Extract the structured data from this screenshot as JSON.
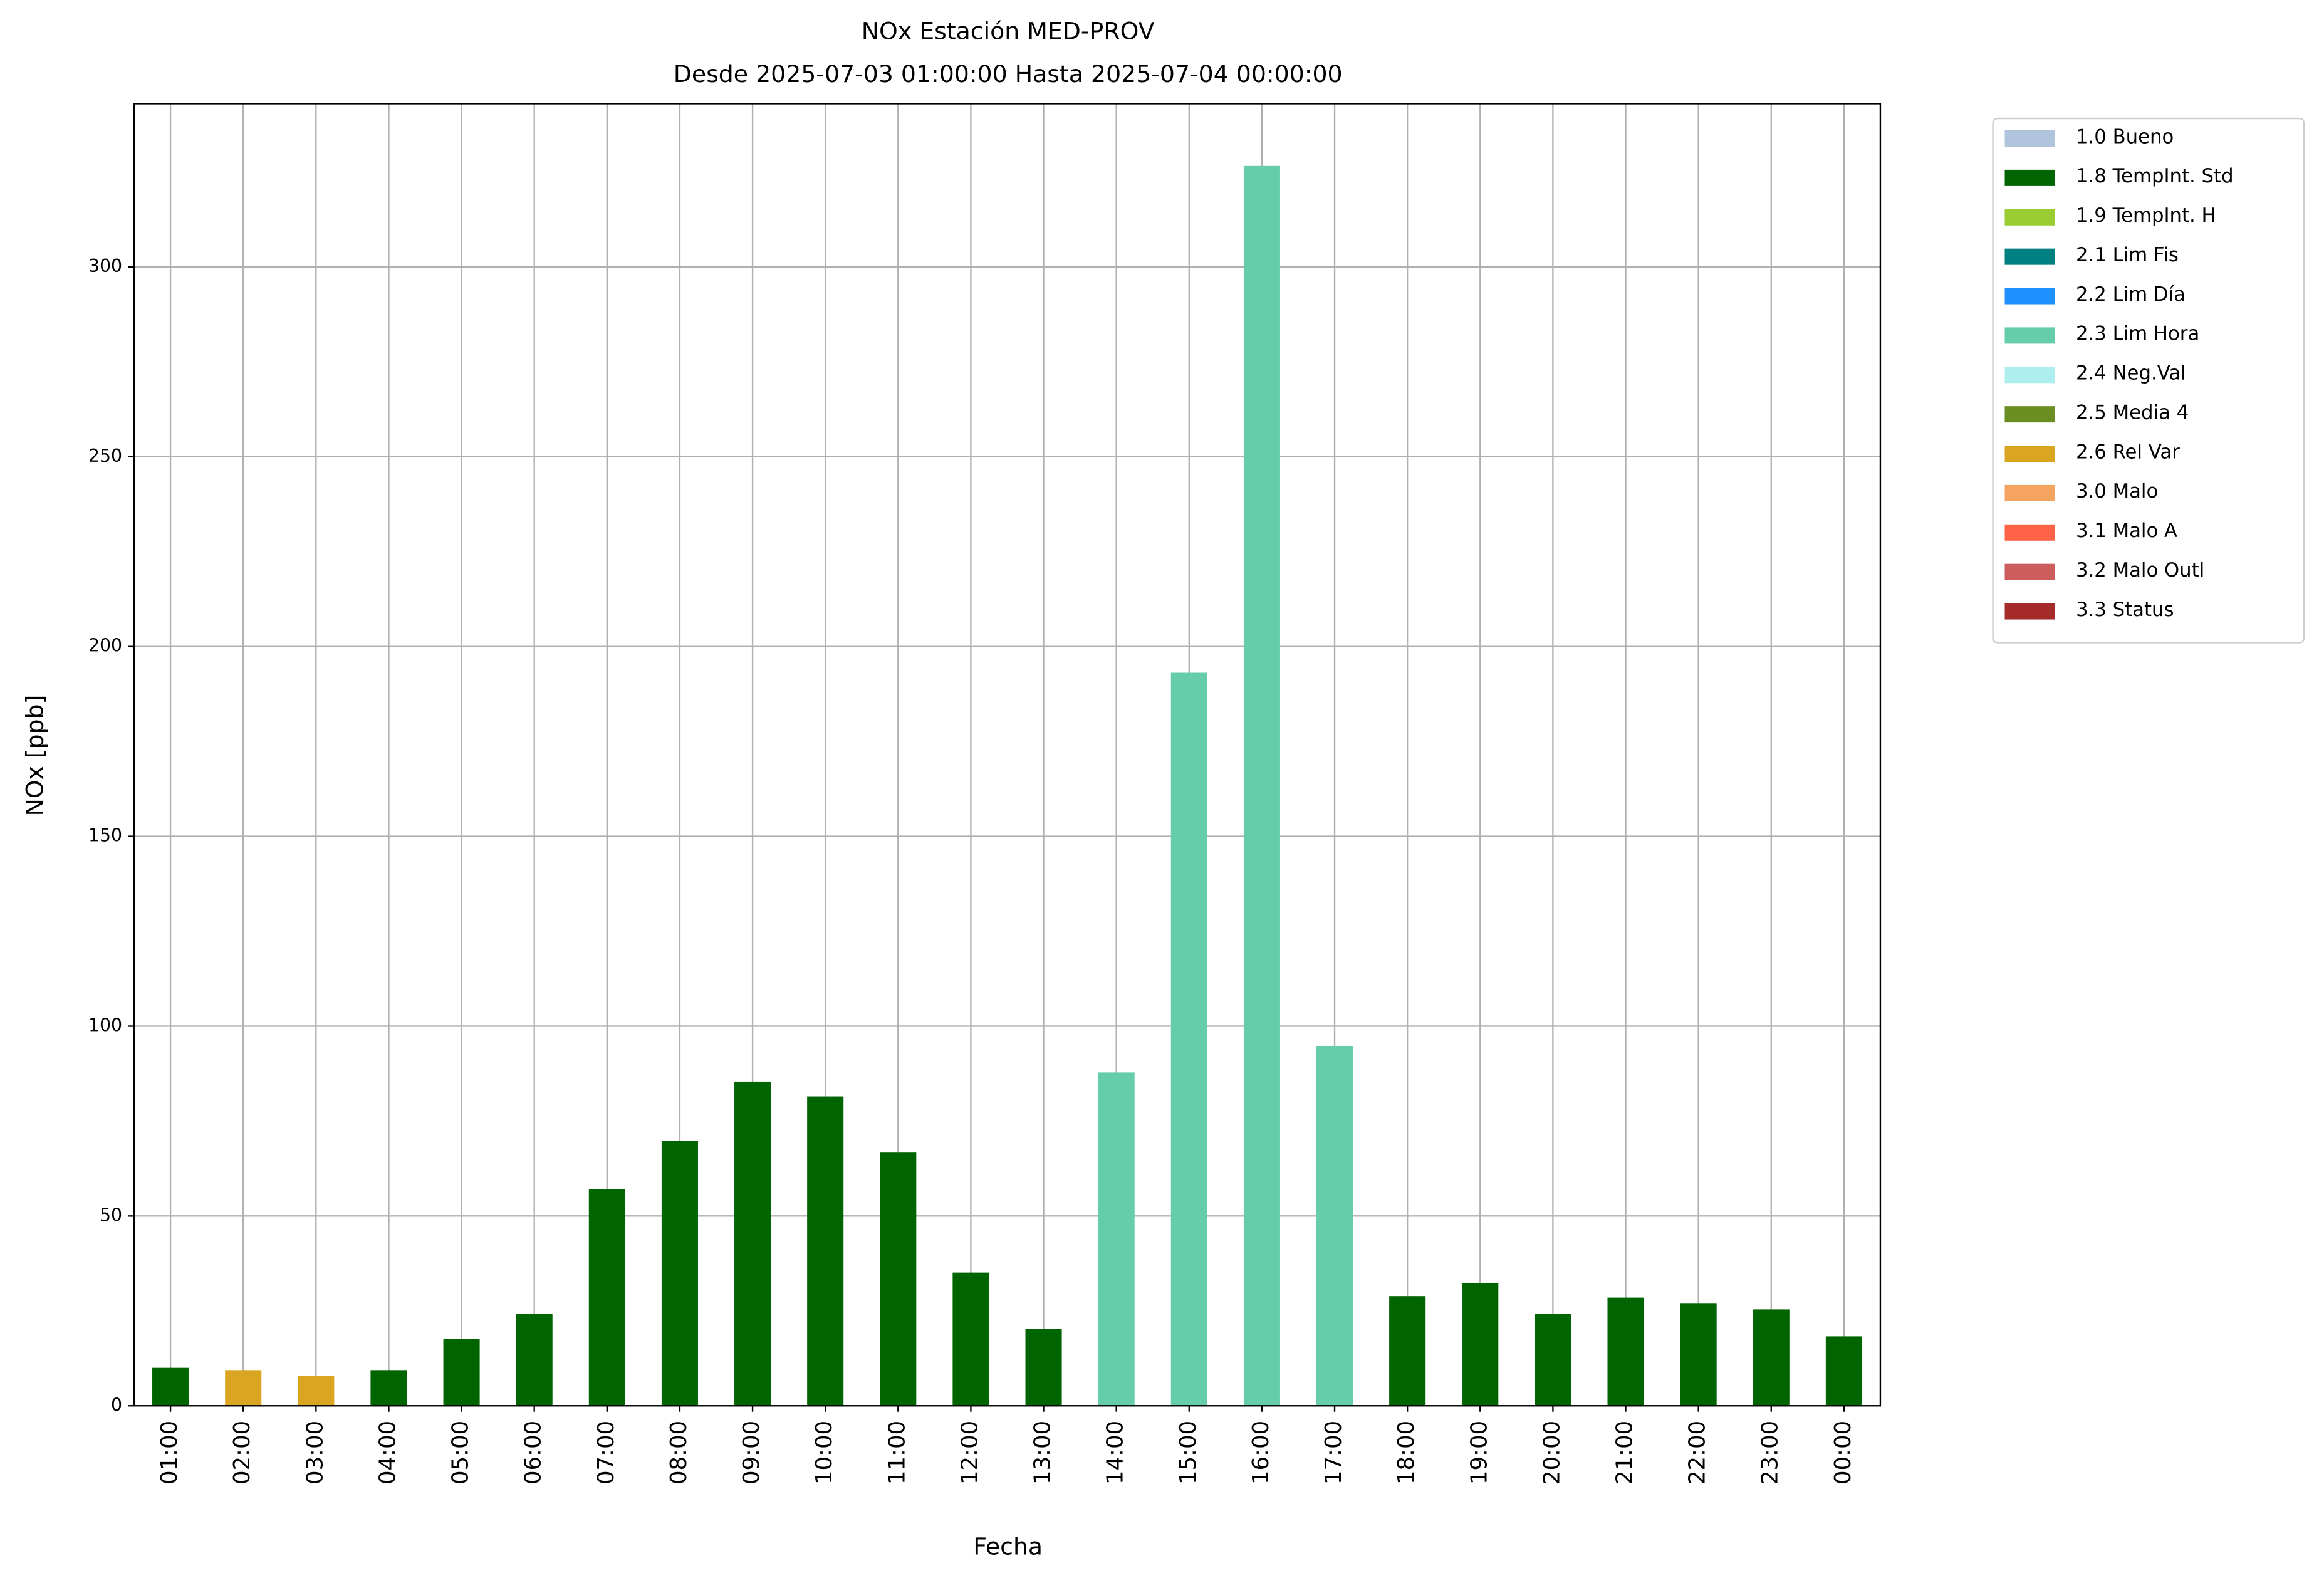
{
  "chart_data": {
    "type": "bar",
    "stacked": true,
    "title": "NOx Estación MED-PROV",
    "subtitle": "Desde 2025-07-03 01:00:00 Hasta 2025-07-04 00:00:00",
    "x_label": "Fecha",
    "y_label": "NOx [ppb]",
    "categories": [
      "01:00",
      "02:00",
      "03:00",
      "04:00",
      "05:00",
      "06:00",
      "07:00",
      "08:00",
      "09:00",
      "10:00",
      "11:00",
      "12:00",
      "13:00",
      "14:00",
      "15:00",
      "16:00",
      "17:00",
      "18:00",
      "19:00",
      "20:00",
      "21:00",
      "22:00",
      "23:00",
      "00:00"
    ],
    "series": [
      {
        "name": "1.0 Bueno",
        "color": "#b0c4de",
        "values": [
          null,
          null,
          null,
          null,
          null,
          null,
          null,
          null,
          null,
          null,
          null,
          null,
          null,
          null,
          null,
          null,
          null,
          null,
          null,
          null,
          null,
          null,
          null,
          null
        ]
      },
      {
        "name": "1.8 TempInt. Std",
        "color": "#006400",
        "values": [
          10,
          null,
          null,
          9.4,
          17.6,
          24.2,
          57,
          69.8,
          85.4,
          81.5,
          66.7,
          35.1,
          20.3,
          null,
          null,
          null,
          null,
          28.9,
          32.4,
          24.2,
          28.5,
          26.9,
          25.4,
          18.3
        ]
      },
      {
        "name": "1.9 TempInt. H",
        "color": "#9acd32",
        "values": [
          null,
          null,
          null,
          null,
          null,
          null,
          null,
          null,
          null,
          null,
          null,
          null,
          null,
          null,
          null,
          null,
          null,
          null,
          null,
          null,
          null,
          null,
          null,
          null
        ]
      },
      {
        "name": "2.1 Lim Fis",
        "color": "#008080",
        "values": [
          null,
          null,
          null,
          null,
          null,
          null,
          null,
          null,
          null,
          null,
          null,
          null,
          null,
          null,
          null,
          null,
          null,
          null,
          null,
          null,
          null,
          null,
          null,
          null
        ]
      },
      {
        "name": "2.2 Lim Día",
        "color": "#1e90ff",
        "values": [
          null,
          null,
          null,
          null,
          null,
          null,
          null,
          null,
          null,
          null,
          null,
          null,
          null,
          null,
          null,
          null,
          null,
          null,
          null,
          null,
          null,
          null,
          null,
          null
        ]
      },
      {
        "name": "2.3 Lim Hora",
        "color": "#66cdaa",
        "values": [
          null,
          null,
          null,
          null,
          null,
          null,
          null,
          null,
          null,
          null,
          null,
          null,
          null,
          87.8,
          193.1,
          326.6,
          94.8,
          null,
          null,
          null,
          null,
          null,
          null,
          null
        ]
      },
      {
        "name": "2.4 Neg.Val",
        "color": "#afeeee",
        "values": [
          null,
          null,
          null,
          null,
          null,
          null,
          null,
          null,
          null,
          null,
          null,
          null,
          null,
          null,
          null,
          null,
          null,
          null,
          null,
          null,
          null,
          null,
          null,
          null
        ]
      },
      {
        "name": "2.5 Media 4",
        "color": "#6b8e23",
        "values": [
          null,
          null,
          null,
          null,
          null,
          null,
          null,
          null,
          null,
          null,
          null,
          null,
          null,
          null,
          null,
          null,
          null,
          null,
          null,
          null,
          null,
          null,
          null,
          null
        ]
      },
      {
        "name": "2.6 Rel Var",
        "color": "#daa520",
        "values": [
          null,
          9.4,
          7.8,
          null,
          null,
          null,
          null,
          null,
          null,
          null,
          null,
          null,
          null,
          null,
          null,
          null,
          null,
          null,
          null,
          null,
          null,
          null,
          null,
          null
        ]
      },
      {
        "name": "3.0 Malo",
        "color": "#f4a460",
        "values": [
          null,
          null,
          null,
          null,
          null,
          null,
          null,
          null,
          null,
          null,
          null,
          null,
          null,
          null,
          null,
          null,
          null,
          null,
          null,
          null,
          null,
          null,
          null,
          null
        ]
      },
      {
        "name": "3.1 Malo A",
        "color": "#ff6347",
        "values": [
          null,
          null,
          null,
          null,
          null,
          null,
          null,
          null,
          null,
          null,
          null,
          null,
          null,
          null,
          null,
          null,
          null,
          null,
          null,
          null,
          null,
          null,
          null,
          null
        ]
      },
      {
        "name": "3.2 Malo Outl",
        "color": "#cd5c5c",
        "values": [
          null,
          null,
          null,
          null,
          null,
          null,
          null,
          null,
          null,
          null,
          null,
          null,
          null,
          null,
          null,
          null,
          null,
          null,
          null,
          null,
          null,
          null,
          null,
          null
        ]
      },
      {
        "name": "3.3 Status",
        "color": "#a52a2a",
        "values": [
          null,
          null,
          null,
          null,
          null,
          null,
          null,
          null,
          null,
          null,
          null,
          null,
          null,
          null,
          null,
          null,
          null,
          null,
          null,
          null,
          null,
          null,
          null,
          null
        ]
      }
    ],
    "ylim": [
      0,
      343
    ],
    "yticks": [
      0,
      50,
      100,
      150,
      200,
      250,
      300
    ],
    "grid": true,
    "legend": "outside-upper-right"
  }
}
